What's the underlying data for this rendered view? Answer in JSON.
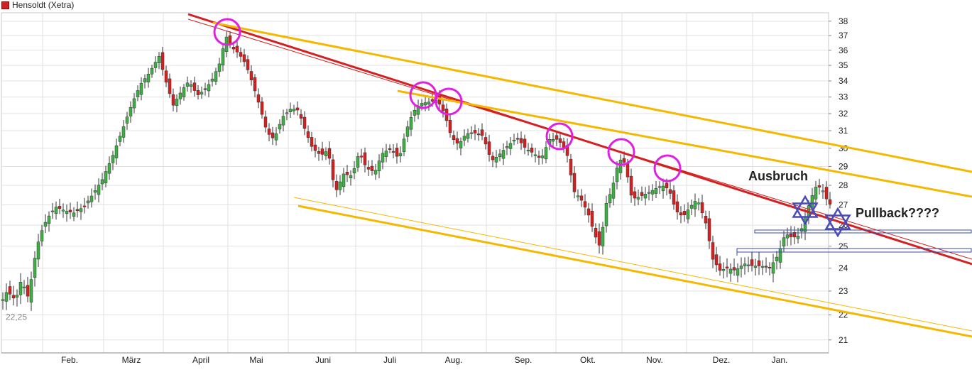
{
  "chart_data": {
    "type": "candlestick",
    "legend": {
      "label": "Hensoldt (Xetra)",
      "color": "#d42020"
    },
    "y_axis": {
      "range": [
        20.5,
        38.6
      ],
      "ticks": [
        21,
        22,
        23,
        24,
        25,
        26,
        27,
        28,
        29,
        30,
        31,
        32,
        33,
        34,
        35,
        36,
        37,
        38
      ],
      "scale": "log",
      "position": "right"
    },
    "x_axis": {
      "labels": [
        "Feb.",
        "März",
        "April",
        "Mai",
        "Juni",
        "Juli",
        "Aug.",
        "Sep.",
        "Okt.",
        "Nov.",
        "Dez.",
        "Jan."
      ]
    },
    "grid": true,
    "start_value_label": "22,25",
    "annotations": {
      "breakout_text": "Ausbruch",
      "pullback_text": "Pullback????"
    },
    "colors": {
      "up": "#3cb043",
      "down": "#d42020",
      "trend_red": "#d42020",
      "trend_orange": "#f5b800",
      "circles": "#e020e0",
      "stars": "#4a4ab8",
      "support_box": "#3a4aa8"
    },
    "close_path": [
      [
        0,
        22.4
      ],
      [
        10,
        23.0
      ],
      [
        22,
        22.6
      ],
      [
        30,
        23.5
      ],
      [
        40,
        22.7
      ],
      [
        48,
        24.3
      ],
      [
        56,
        25.5
      ],
      [
        66,
        26.3
      ],
      [
        78,
        26.9
      ],
      [
        92,
        26.7
      ],
      [
        104,
        26.6
      ],
      [
        118,
        26.9
      ],
      [
        130,
        27.5
      ],
      [
        144,
        28.3
      ],
      [
        158,
        29.5
      ],
      [
        172,
        31.0
      ],
      [
        186,
        32.6
      ],
      [
        198,
        33.8
      ],
      [
        210,
        34.5
      ],
      [
        224,
        35.6
      ],
      [
        232,
        34.2
      ],
      [
        244,
        32.5
      ],
      [
        256,
        33.4
      ],
      [
        266,
        34.0
      ],
      [
        278,
        33.1
      ],
      [
        290,
        33.5
      ],
      [
        300,
        34.2
      ],
      [
        310,
        35.2
      ],
      [
        318,
        37.0
      ],
      [
        326,
        36.2
      ],
      [
        336,
        35.8
      ],
      [
        346,
        35.1
      ],
      [
        356,
        33.8
      ],
      [
        366,
        32.4
      ],
      [
        376,
        30.9
      ],
      [
        386,
        30.5
      ],
      [
        398,
        31.8
      ],
      [
        410,
        32.3
      ],
      [
        420,
        32.2
      ],
      [
        430,
        31.0
      ],
      [
        440,
        30.0
      ],
      [
        452,
        29.6
      ],
      [
        462,
        29.9
      ],
      [
        472,
        27.6
      ],
      [
        484,
        28.6
      ],
      [
        496,
        28.5
      ],
      [
        506,
        29.8
      ],
      [
        516,
        28.9
      ],
      [
        528,
        28.7
      ],
      [
        538,
        29.7
      ],
      [
        550,
        30.0
      ],
      [
        562,
        29.4
      ],
      [
        572,
        31.0
      ],
      [
        582,
        32.1
      ],
      [
        592,
        32.6
      ],
      [
        604,
        32.7
      ],
      [
        616,
        32.8
      ],
      [
        626,
        32.0
      ],
      [
        636,
        30.6
      ],
      [
        646,
        30.2
      ],
      [
        656,
        30.8
      ],
      [
        666,
        30.9
      ],
      [
        680,
        30.7
      ],
      [
        692,
        29.3
      ],
      [
        702,
        29.6
      ],
      [
        714,
        30.1
      ],
      [
        728,
        30.6
      ],
      [
        740,
        30.0
      ],
      [
        752,
        29.7
      ],
      [
        762,
        29.4
      ],
      [
        774,
        30.5
      ],
      [
        786,
        30.5
      ],
      [
        798,
        29.8
      ],
      [
        808,
        27.7
      ],
      [
        818,
        27.3
      ],
      [
        828,
        26.6
      ],
      [
        838,
        25.5
      ],
      [
        846,
        24.9
      ],
      [
        852,
        26.9
      ],
      [
        862,
        27.8
      ],
      [
        872,
        29.4
      ],
      [
        880,
        29.2
      ],
      [
        890,
        27.3
      ],
      [
        900,
        27.4
      ],
      [
        912,
        27.6
      ],
      [
        922,
        27.8
      ],
      [
        932,
        28.0
      ],
      [
        942,
        27.8
      ],
      [
        952,
        26.7
      ],
      [
        962,
        26.4
      ],
      [
        972,
        26.9
      ],
      [
        982,
        27.3
      ],
      [
        994,
        26.1
      ],
      [
        1004,
        24.4
      ],
      [
        1014,
        23.9
      ],
      [
        1024,
        24.0
      ],
      [
        1036,
        23.9
      ],
      [
        1048,
        24.2
      ],
      [
        1060,
        24.1
      ],
      [
        1072,
        24.1
      ],
      [
        1084,
        24.0
      ],
      [
        1096,
        24.6
      ],
      [
        1106,
        25.6
      ],
      [
        1116,
        25.4
      ],
      [
        1126,
        25.5
      ],
      [
        1134,
        26.4
      ],
      [
        1142,
        27.3
      ],
      [
        1150,
        28.0
      ],
      [
        1158,
        27.8
      ],
      [
        1164,
        27.3
      ],
      [
        1172,
        26.9
      ]
    ]
  }
}
